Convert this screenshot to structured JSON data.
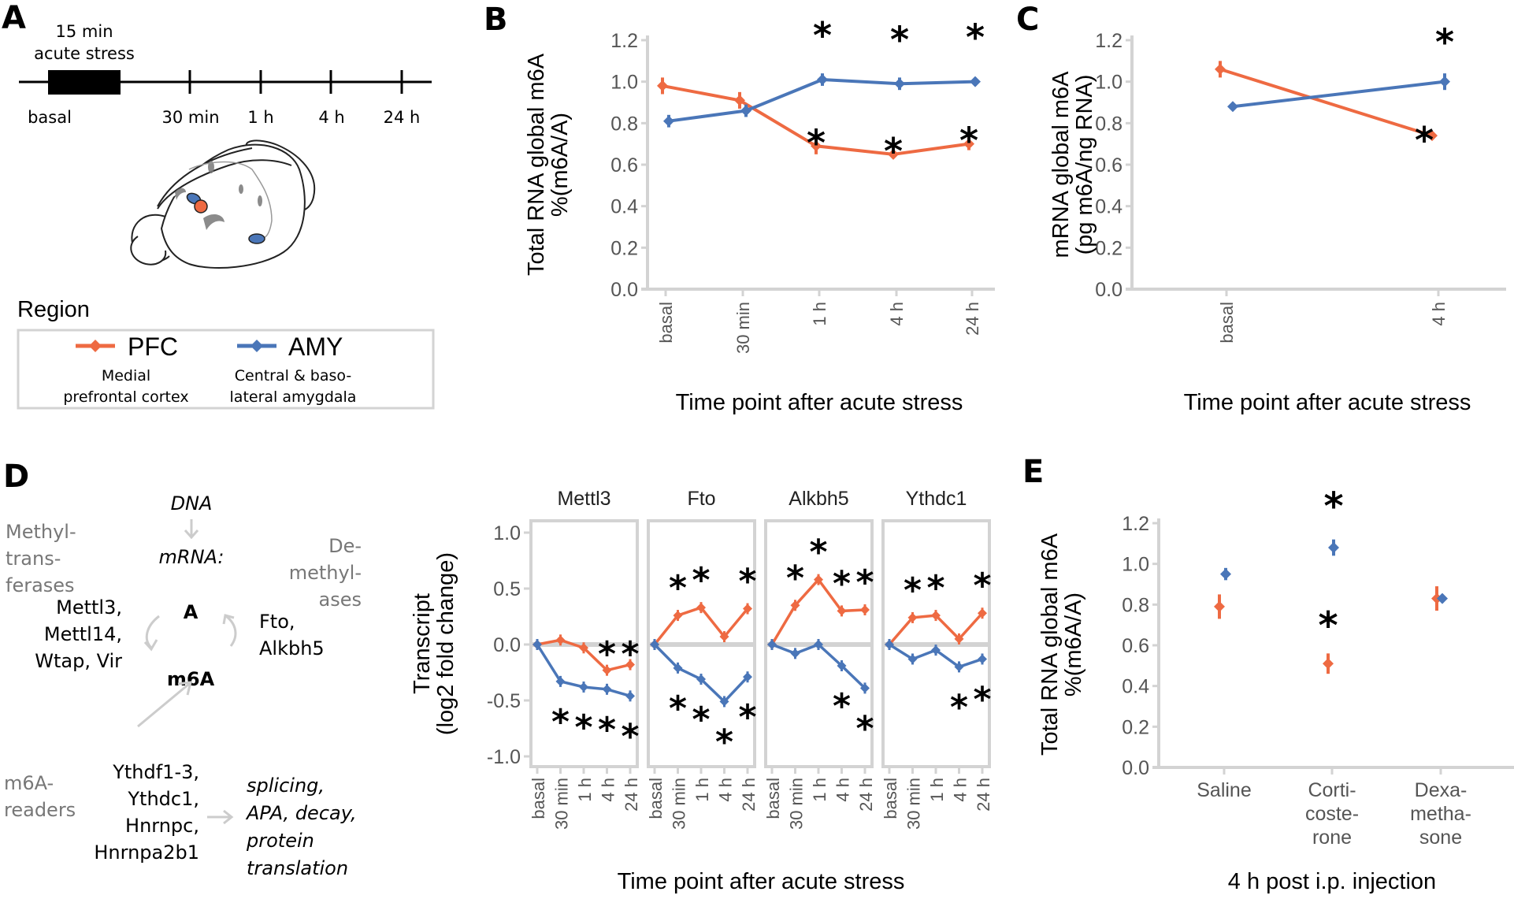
{
  "colors": {
    "pfc": "#EE6A42",
    "amy": "#4A76B8",
    "axis": "#D3D3D3",
    "tick_text": "#555555",
    "grey_text": "#777777",
    "arrow": "#CCCCCC"
  },
  "panel_labels": [
    "A",
    "B",
    "C",
    "D",
    "E"
  ],
  "panel_a": {
    "stress_label_1": "15  min",
    "stress_label_2": "acute stress",
    "timeline_labels": [
      "basal",
      "30 min",
      "1 h",
      "4 h",
      "24 h"
    ],
    "legend": {
      "title": "Region",
      "entries": [
        {
          "key": "PFC",
          "desc_1": "Medial",
          "desc_2": "prefrontal cortex"
        },
        {
          "key": "AMY",
          "desc_1": "Central & baso-",
          "desc_2": "lateral amygdala"
        }
      ]
    }
  },
  "diagram_d": {
    "dna": "DNA",
    "mrna": "mRNA:",
    "a": "A",
    "m6a": "m6A",
    "methyltransferases_title": [
      "Methyl-",
      "trans-",
      "ferases"
    ],
    "methyltransferases": [
      "Mettl3,",
      "Mettl14,",
      "Wtap, Vir"
    ],
    "demethylases_title": [
      "De-",
      "methyl-",
      "ases"
    ],
    "demethylases": [
      "Fto,",
      "Alkbh5"
    ],
    "readers_title": [
      "m6A-",
      "readers"
    ],
    "readers": [
      "Ythdf1-3,",
      "Ythdc1,",
      "Hnrnpc,",
      "Hnrnpa2b1"
    ],
    "outcomes": [
      "splicing,",
      "APA, decay,",
      "protein",
      "translation"
    ]
  },
  "chart_data": [
    {
      "id": "B",
      "type": "line",
      "title": "",
      "xlabel": "Time point after acute stress",
      "ylabel": [
        "Total RNA global m6A",
        "%(m6A/A)"
      ],
      "categories": [
        "basal",
        "30 min",
        "1 h",
        "4 h",
        "24 h"
      ],
      "ylim": [
        0,
        1.2
      ],
      "yticks": [
        "0.0",
        "0.2",
        "0.4",
        "0.6",
        "0.8",
        "1.0",
        "1.2"
      ],
      "series": [
        {
          "name": "PFC",
          "values": [
            0.98,
            0.91,
            0.69,
            0.65,
            0.7
          ],
          "err": [
            0.04,
            0.04,
            0.04,
            0.02,
            0.03
          ],
          "sig": [
            false,
            false,
            true,
            true,
            true
          ]
        },
        {
          "name": "AMY",
          "values": [
            0.81,
            0.86,
            1.01,
            0.99,
            1.0
          ],
          "err": [
            0.03,
            0.03,
            0.03,
            0.03,
            0.02
          ],
          "sig": [
            false,
            false,
            true,
            true,
            true
          ]
        }
      ],
      "sig_symbol": "*"
    },
    {
      "id": "C",
      "type": "line",
      "title": "",
      "xlabel": "Time point after acute stress",
      "ylabel": [
        "mRNA global m6A",
        "(pg m6A/ng RNA)"
      ],
      "categories": [
        "basal",
        "4 h"
      ],
      "ylim": [
        0,
        1.2
      ],
      "yticks": [
        "0.0",
        "0.2",
        "0.4",
        "0.6",
        "0.8",
        "1.0",
        "1.2"
      ],
      "series": [
        {
          "name": "PFC",
          "values": [
            1.06,
            0.74
          ],
          "err": [
            0.04,
            0.01
          ],
          "sig": [
            false,
            true
          ]
        },
        {
          "name": "AMY",
          "values": [
            0.88,
            1.0
          ],
          "err": [
            0.01,
            0.04
          ],
          "sig": [
            false,
            true
          ]
        }
      ],
      "sig_symbol": "*"
    },
    {
      "id": "D",
      "type": "line",
      "title": "",
      "xlabel": "Time point after acute stress",
      "ylabel": [
        "Transcript",
        "(log2 fold change)"
      ],
      "categories": [
        "basal",
        "30 min",
        "1 h",
        "4 h",
        "24 h"
      ],
      "ylim": [
        -1.0,
        1.0
      ],
      "yticks": [
        "-1.0",
        "-0.5",
        "0.0",
        "0.5",
        "1.0"
      ],
      "facets": [
        {
          "name": "Mettl3",
          "series": [
            {
              "name": "PFC",
              "values": [
                0,
                0.04,
                -0.03,
                -0.23,
                -0.18
              ],
              "sig": [
                false,
                false,
                false,
                true,
                true
              ]
            },
            {
              "name": "AMY",
              "values": [
                0,
                -0.33,
                -0.38,
                -0.4,
                -0.46
              ],
              "sig": [
                false,
                true,
                true,
                true,
                true
              ]
            }
          ]
        },
        {
          "name": "Fto",
          "series": [
            {
              "name": "PFC",
              "values": [
                0,
                0.26,
                0.33,
                0.07,
                0.32
              ],
              "sig": [
                false,
                true,
                true,
                false,
                true
              ]
            },
            {
              "name": "AMY",
              "values": [
                0,
                -0.21,
                -0.31,
                -0.51,
                -0.29
              ],
              "sig": [
                false,
                true,
                true,
                true,
                true
              ]
            }
          ]
        },
        {
          "name": "Alkbh5",
          "series": [
            {
              "name": "PFC",
              "values": [
                0,
                0.35,
                0.58,
                0.3,
                0.31
              ],
              "sig": [
                false,
                true,
                true,
                true,
                true
              ]
            },
            {
              "name": "AMY",
              "values": [
                0,
                -0.08,
                0.0,
                -0.19,
                -0.39
              ],
              "sig": [
                false,
                false,
                false,
                true,
                true
              ]
            }
          ]
        },
        {
          "name": "Ythdc1",
          "series": [
            {
              "name": "PFC",
              "values": [
                0,
                0.24,
                0.26,
                0.05,
                0.28
              ],
              "sig": [
                false,
                true,
                true,
                false,
                true
              ]
            },
            {
              "name": "AMY",
              "values": [
                0,
                -0.13,
                -0.05,
                -0.2,
                -0.13
              ],
              "sig": [
                false,
                false,
                false,
                true,
                true
              ]
            }
          ]
        }
      ],
      "sig_symbol": "*"
    },
    {
      "id": "E",
      "type": "scatter",
      "title": "",
      "xlabel": "4 h post i.p. injection",
      "ylabel": [
        "Total RNA global m6A",
        "%(m6A/A)"
      ],
      "categories": [
        [
          "Saline"
        ],
        [
          "Corti-",
          "coste-",
          "rone"
        ],
        [
          "Dexa-",
          "metha-",
          "sone"
        ]
      ],
      "ylim": [
        0,
        1.2
      ],
      "yticks": [
        "0.0",
        "0.2",
        "0.4",
        "0.6",
        "0.8",
        "1.0",
        "1.2"
      ],
      "series": [
        {
          "name": "PFC",
          "values": [
            0.79,
            0.51,
            0.83
          ],
          "err": [
            0.06,
            0.05,
            0.06
          ],
          "sig": [
            false,
            true,
            false
          ]
        },
        {
          "name": "AMY",
          "values": [
            0.95,
            1.08,
            0.83
          ],
          "err": [
            0.03,
            0.04,
            0.02
          ],
          "sig": [
            false,
            true,
            false
          ]
        }
      ],
      "sig_symbol": "*"
    }
  ]
}
